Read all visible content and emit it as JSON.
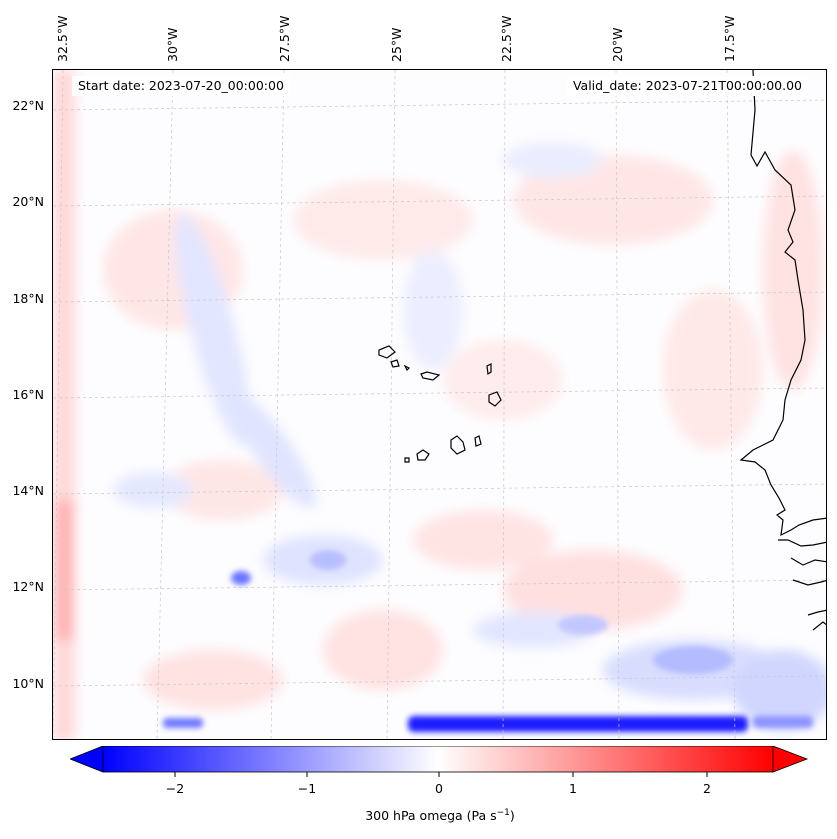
{
  "map": {
    "start_date_text": "Start date: 2023-07-20_00:00:00",
    "valid_date_text": "Valid_date: 2023-07-21T00:00:00.00",
    "lon_labels": [
      "32.5°W",
      "30°W",
      "27.5°W",
      "25°W",
      "22.5°W",
      "20°W",
      "17.5°W"
    ],
    "lat_labels": [
      "22°N",
      "20°N",
      "18°N",
      "16°N",
      "14°N",
      "12°N",
      "10°N"
    ],
    "field_colormap": "bwr",
    "coastline_color": "#000000",
    "gridline_color": "#c8c8c8"
  },
  "colorbar": {
    "label_prefix": "300 hPa omega (Pa s",
    "label_exp": "−1",
    "label_suffix": ")",
    "tick_labels": [
      "−2",
      "−1",
      "0",
      "1",
      "2"
    ],
    "min": -2.7,
    "max": 2.7,
    "extend": "both",
    "low_color": "#0000ff",
    "mid_color": "#ffffff",
    "high_color": "#ff0000"
  }
}
